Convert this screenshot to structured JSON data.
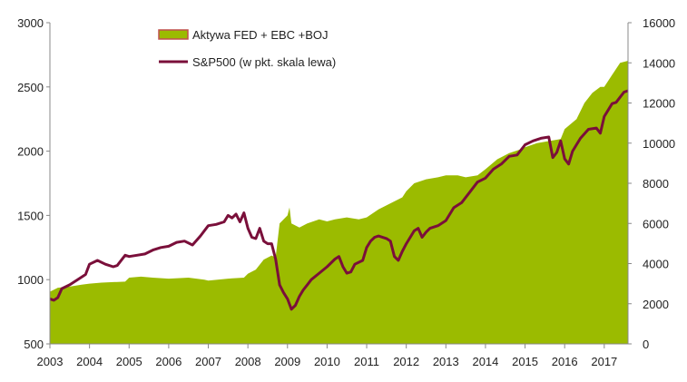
{
  "chart_data": {
    "type": "area+line",
    "title": "",
    "xlabel": "",
    "x_ticks": [
      "2003",
      "2004",
      "2005",
      "2006",
      "2007",
      "2008",
      "2009",
      "2010",
      "2011",
      "2012",
      "2013",
      "2014",
      "2015",
      "2016",
      "2017"
    ],
    "x_range": [
      2003.0,
      2017.6
    ],
    "y_left": {
      "label": "",
      "range": [
        500,
        3000
      ],
      "ticks": [
        "500",
        "1000",
        "1500",
        "2000",
        "2500",
        "3000"
      ]
    },
    "y_right": {
      "label": "",
      "range": [
        0,
        16000
      ],
      "ticks": [
        "0",
        "2000",
        "4000",
        "6000",
        "8000",
        "10000",
        "12000",
        "14000",
        "16000"
      ]
    },
    "legend": {
      "placement": "top-center"
    },
    "series": [
      {
        "name": "Aktywa FED + EBC +BOJ",
        "type": "area",
        "axis": "right",
        "color": "#9bbb00",
        "legend_swatch_border": "#c0504d",
        "points": [
          [
            2003.0,
            2600
          ],
          [
            2003.2,
            2800
          ],
          [
            2003.5,
            2850
          ],
          [
            2003.8,
            2950
          ],
          [
            2004.0,
            3000
          ],
          [
            2004.3,
            3050
          ],
          [
            2004.6,
            3080
          ],
          [
            2004.9,
            3100
          ],
          [
            2005.0,
            3300
          ],
          [
            2005.3,
            3350
          ],
          [
            2005.6,
            3300
          ],
          [
            2006.0,
            3250
          ],
          [
            2006.5,
            3300
          ],
          [
            2006.9,
            3200
          ],
          [
            2007.0,
            3150
          ],
          [
            2007.5,
            3250
          ],
          [
            2007.9,
            3300
          ],
          [
            2008.0,
            3500
          ],
          [
            2008.2,
            3700
          ],
          [
            2008.4,
            4200
          ],
          [
            2008.6,
            4400
          ],
          [
            2008.7,
            4300
          ],
          [
            2008.8,
            6000
          ],
          [
            2009.0,
            6400
          ],
          [
            2009.05,
            6800
          ],
          [
            2009.1,
            6000
          ],
          [
            2009.3,
            5800
          ],
          [
            2009.5,
            6000
          ],
          [
            2009.8,
            6200
          ],
          [
            2010.0,
            6100
          ],
          [
            2010.2,
            6200
          ],
          [
            2010.5,
            6300
          ],
          [
            2010.8,
            6200
          ],
          [
            2011.0,
            6300
          ],
          [
            2011.3,
            6700
          ],
          [
            2011.6,
            7000
          ],
          [
            2011.9,
            7300
          ],
          [
            2012.0,
            7600
          ],
          [
            2012.2,
            8000
          ],
          [
            2012.5,
            8200
          ],
          [
            2012.8,
            8300
          ],
          [
            2013.0,
            8400
          ],
          [
            2013.3,
            8400
          ],
          [
            2013.5,
            8300
          ],
          [
            2013.8,
            8400
          ],
          [
            2014.0,
            8700
          ],
          [
            2014.3,
            9200
          ],
          [
            2014.6,
            9500
          ],
          [
            2014.9,
            9700
          ],
          [
            2015.0,
            9800
          ],
          [
            2015.3,
            10000
          ],
          [
            2015.6,
            10100
          ],
          [
            2015.9,
            10200
          ],
          [
            2016.0,
            10700
          ],
          [
            2016.3,
            11200
          ],
          [
            2016.5,
            12000
          ],
          [
            2016.7,
            12500
          ],
          [
            2016.9,
            12800
          ],
          [
            2017.0,
            12800
          ],
          [
            2017.2,
            13400
          ],
          [
            2017.4,
            14000
          ],
          [
            2017.6,
            14100
          ]
        ]
      },
      {
        "name": "S&P500 (w pkt. skala lewa)",
        "type": "line",
        "axis": "left",
        "color": "#7a0f3a",
        "points": [
          [
            2003.0,
            850
          ],
          [
            2003.1,
            840
          ],
          [
            2003.2,
            860
          ],
          [
            2003.3,
            930
          ],
          [
            2003.5,
            960
          ],
          [
            2003.7,
            1000
          ],
          [
            2003.9,
            1040
          ],
          [
            2004.0,
            1120
          ],
          [
            2004.2,
            1150
          ],
          [
            2004.4,
            1120
          ],
          [
            2004.6,
            1100
          ],
          [
            2004.7,
            1110
          ],
          [
            2004.9,
            1190
          ],
          [
            2005.0,
            1180
          ],
          [
            2005.2,
            1190
          ],
          [
            2005.4,
            1200
          ],
          [
            2005.6,
            1230
          ],
          [
            2005.8,
            1250
          ],
          [
            2006.0,
            1260
          ],
          [
            2006.2,
            1290
          ],
          [
            2006.4,
            1300
          ],
          [
            2006.6,
            1270
          ],
          [
            2006.8,
            1340
          ],
          [
            2007.0,
            1420
          ],
          [
            2007.2,
            1430
          ],
          [
            2007.4,
            1450
          ],
          [
            2007.5,
            1500
          ],
          [
            2007.6,
            1480
          ],
          [
            2007.7,
            1510
          ],
          [
            2007.8,
            1450
          ],
          [
            2007.9,
            1520
          ],
          [
            2008.0,
            1400
          ],
          [
            2008.1,
            1330
          ],
          [
            2008.2,
            1320
          ],
          [
            2008.3,
            1400
          ],
          [
            2008.4,
            1300
          ],
          [
            2008.5,
            1280
          ],
          [
            2008.6,
            1280
          ],
          [
            2008.7,
            1160
          ],
          [
            2008.8,
            960
          ],
          [
            2008.9,
            900
          ],
          [
            2009.0,
            850
          ],
          [
            2009.1,
            770
          ],
          [
            2009.2,
            800
          ],
          [
            2009.3,
            870
          ],
          [
            2009.4,
            920
          ],
          [
            2009.5,
            960
          ],
          [
            2009.6,
            1000
          ],
          [
            2009.8,
            1050
          ],
          [
            2010.0,
            1100
          ],
          [
            2010.2,
            1160
          ],
          [
            2010.3,
            1180
          ],
          [
            2010.4,
            1100
          ],
          [
            2010.5,
            1050
          ],
          [
            2010.6,
            1060
          ],
          [
            2010.7,
            1120
          ],
          [
            2010.9,
            1150
          ],
          [
            2011.0,
            1250
          ],
          [
            2011.1,
            1300
          ],
          [
            2011.2,
            1330
          ],
          [
            2011.3,
            1340
          ],
          [
            2011.5,
            1320
          ],
          [
            2011.6,
            1300
          ],
          [
            2011.7,
            1180
          ],
          [
            2011.8,
            1150
          ],
          [
            2011.9,
            1220
          ],
          [
            2012.0,
            1280
          ],
          [
            2012.2,
            1380
          ],
          [
            2012.3,
            1400
          ],
          [
            2012.4,
            1330
          ],
          [
            2012.5,
            1370
          ],
          [
            2012.6,
            1400
          ],
          [
            2012.8,
            1420
          ],
          [
            2013.0,
            1460
          ],
          [
            2013.2,
            1560
          ],
          [
            2013.4,
            1600
          ],
          [
            2013.6,
            1680
          ],
          [
            2013.8,
            1760
          ],
          [
            2014.0,
            1790
          ],
          [
            2014.2,
            1860
          ],
          [
            2014.4,
            1900
          ],
          [
            2014.6,
            1960
          ],
          [
            2014.8,
            1970
          ],
          [
            2015.0,
            2050
          ],
          [
            2015.2,
            2080
          ],
          [
            2015.4,
            2100
          ],
          [
            2015.6,
            2110
          ],
          [
            2015.7,
            1950
          ],
          [
            2015.8,
            1990
          ],
          [
            2015.9,
            2080
          ],
          [
            2016.0,
            1940
          ],
          [
            2016.1,
            1900
          ],
          [
            2016.2,
            2000
          ],
          [
            2016.4,
            2100
          ],
          [
            2016.6,
            2170
          ],
          [
            2016.8,
            2180
          ],
          [
            2016.9,
            2140
          ],
          [
            2017.0,
            2270
          ],
          [
            2017.2,
            2370
          ],
          [
            2017.3,
            2380
          ],
          [
            2017.4,
            2420
          ],
          [
            2017.5,
            2460
          ],
          [
            2017.6,
            2470
          ]
        ]
      }
    ]
  }
}
